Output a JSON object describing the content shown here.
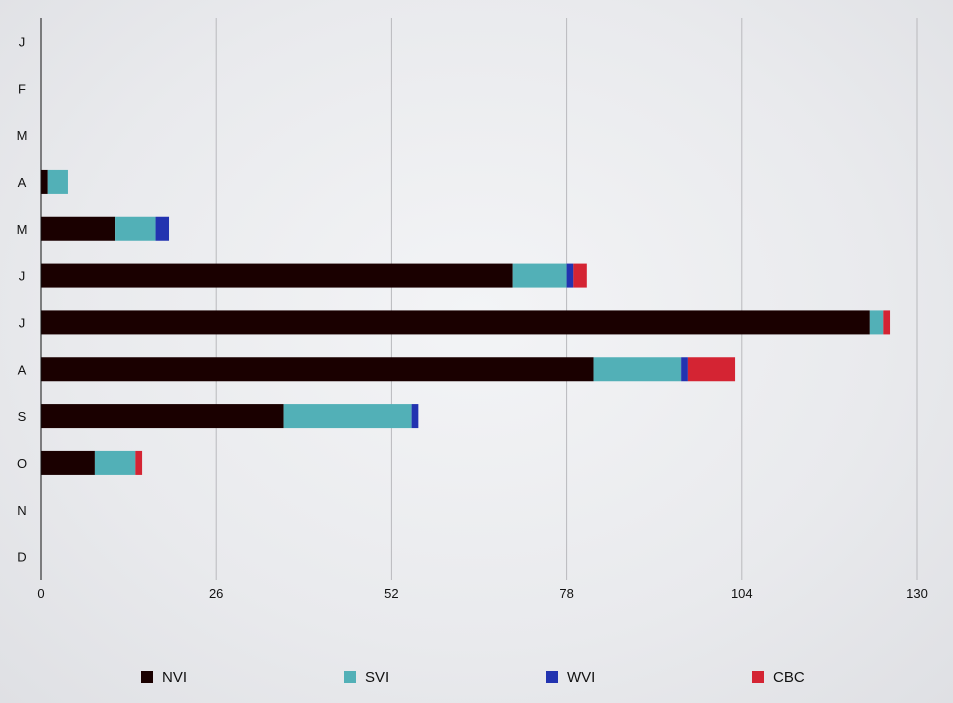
{
  "chart_data": {
    "type": "bar",
    "orientation": "horizontal",
    "stacked": true,
    "categories": [
      "J",
      "F",
      "M",
      "A",
      "M",
      "J",
      "J",
      "A",
      "S",
      "O",
      "N",
      "D"
    ],
    "series": [
      {
        "name": "NVI",
        "color": "#1a0000",
        "values": [
          0,
          0,
          0,
          1,
          11,
          70,
          123,
          82,
          36,
          8,
          0,
          0
        ]
      },
      {
        "name": "SVI",
        "color": "#52b0b7",
        "values": [
          0,
          0,
          0,
          3,
          6,
          8,
          2,
          13,
          19,
          6,
          0,
          0
        ]
      },
      {
        "name": "WVI",
        "color": "#2233b0",
        "values": [
          0,
          0,
          0,
          0,
          2,
          1,
          0,
          1,
          1,
          0,
          0,
          0
        ]
      },
      {
        "name": "CBC",
        "color": "#d42433",
        "values": [
          0,
          0,
          0,
          0,
          0,
          2,
          1,
          7,
          0,
          1,
          0,
          0
        ]
      }
    ],
    "xlim": [
      0,
      130
    ],
    "xticks": [
      "0",
      "26",
      "52",
      "78",
      "104",
      "130"
    ],
    "grid": true,
    "legend_position": "bottom"
  }
}
